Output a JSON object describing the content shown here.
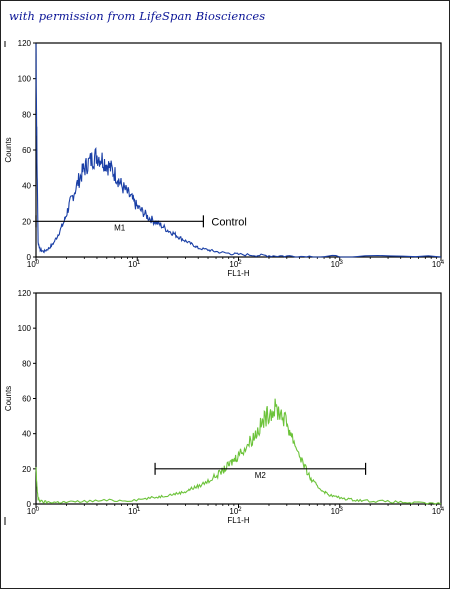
{
  "credit_text": "with permission from LifeSpan Biosciences",
  "chart_data": [
    {
      "type": "line",
      "xlabel": "FL1-H",
      "ylabel": "Counts",
      "xscale": "log",
      "xlim": [
        1,
        10000
      ],
      "ylim": [
        0,
        120
      ],
      "xticks": [
        {
          "label": "10",
          "exp": "0"
        },
        {
          "label": "10",
          "exp": "1"
        },
        {
          "label": "10",
          "exp": "2"
        },
        {
          "label": "10",
          "exp": "3"
        },
        {
          "label": "10",
          "exp": "4"
        }
      ],
      "yticks": [
        "0",
        "20",
        "40",
        "60",
        "80",
        "100",
        "120"
      ],
      "color": "#1a3fa6",
      "marker": {
        "label": "M1",
        "x_start": 1.0,
        "x_end": 45,
        "y": 20
      },
      "annotation": "Control",
      "series": [
        {
          "x": [
            1.0,
            1.02,
            1.05,
            1.1,
            1.2,
            1.35,
            1.5,
            1.7,
            1.9,
            2.1,
            2.3,
            2.6,
            2.9,
            3.2,
            3.6,
            4.0,
            4.5,
            5.0,
            5.6,
            6.3,
            7.0,
            8.0,
            9.0,
            10.0,
            11.5,
            13,
            15,
            17,
            20,
            23,
            26,
            30,
            35,
            40,
            50,
            60,
            80,
            100,
            150,
            200,
            300,
            500,
            1000,
            10000
          ],
          "y": [
            120,
            60,
            8,
            4,
            3,
            5,
            8,
            14,
            20,
            28,
            34,
            42,
            48,
            52,
            55,
            57,
            55,
            52,
            49,
            45,
            40,
            36,
            32,
            28,
            25,
            22,
            20,
            18,
            15,
            13,
            11,
            9,
            7,
            5,
            4,
            3,
            2,
            1.5,
            1,
            0.8,
            0.5,
            0.3,
            0.2,
            0
          ]
        }
      ]
    },
    {
      "type": "line",
      "xlabel": "FL1-H",
      "ylabel": "Counts",
      "xscale": "log",
      "xlim": [
        1,
        10000
      ],
      "ylim": [
        0,
        120
      ],
      "xticks": [
        {
          "label": "10",
          "exp": "0"
        },
        {
          "label": "10",
          "exp": "1"
        },
        {
          "label": "10",
          "exp": "2"
        },
        {
          "label": "10",
          "exp": "3"
        },
        {
          "label": "10",
          "exp": "4"
        }
      ],
      "yticks": [
        "0",
        "20",
        "40",
        "60",
        "80",
        "100",
        "120"
      ],
      "color": "#6cc33a",
      "marker": {
        "label": "M2",
        "x_start": 15,
        "x_end": 1800,
        "y": 20
      },
      "series": [
        {
          "x": [
            1.0,
            1.02,
            1.05,
            1.1,
            1.3,
            1.6,
            2,
            3,
            5,
            8,
            12,
            16,
            20,
            25,
            30,
            35,
            40,
            50,
            60,
            70,
            80,
            90,
            100,
            120,
            140,
            160,
            180,
            200,
            230,
            260,
            300,
            340,
            400,
            460,
            520,
            600,
            700,
            800,
            1000,
            1300,
            1700,
            2500,
            4000,
            6000,
            10000
          ],
          "y": [
            20,
            10,
            3,
            1.5,
            1,
            1,
            1,
            1.5,
            2,
            2,
            3,
            4,
            5,
            6,
            7,
            9,
            10,
            13,
            16,
            19,
            22,
            25,
            28,
            33,
            38,
            43,
            48,
            52,
            54,
            52,
            46,
            38,
            28,
            20,
            14,
            10,
            7,
            5,
            3.5,
            2.5,
            2,
            1.5,
            1,
            0.5,
            0
          ]
        }
      ]
    }
  ]
}
